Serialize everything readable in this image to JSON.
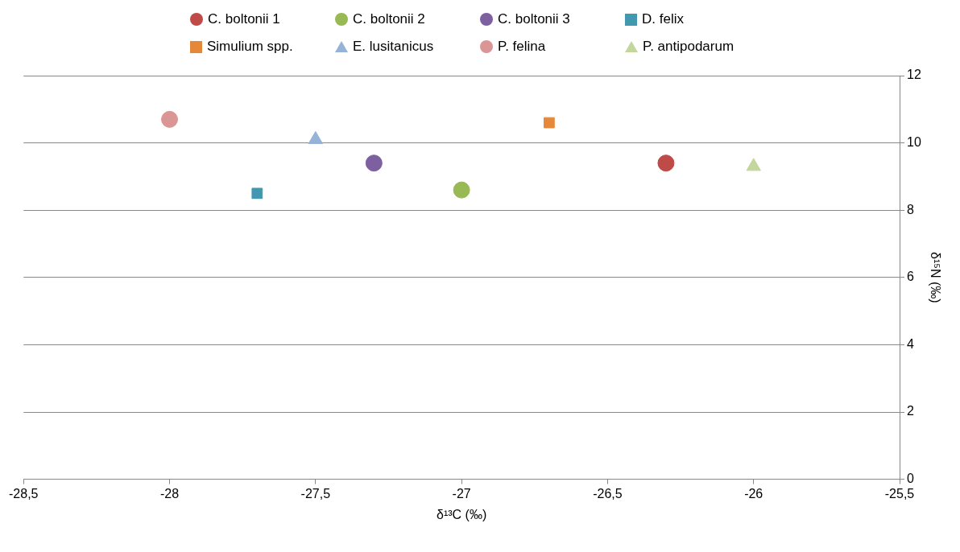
{
  "chart_data": {
    "type": "scatter",
    "xlabel": "δ¹³C (‰)",
    "ylabel": "δ¹⁵N (‰)",
    "xlim": [
      -28.5,
      -25.5
    ],
    "ylim": [
      0,
      12
    ],
    "xticks": [
      {
        "value": -28.5,
        "label": "-28,5"
      },
      -28,
      {
        "value": -27.5,
        "label": "-27,5"
      },
      -27,
      {
        "value": -26.5,
        "label": "-26,5"
      },
      -26,
      {
        "value": -25.5,
        "label": "-25,5"
      }
    ],
    "yticks": [
      0,
      2,
      4,
      6,
      8,
      10,
      12
    ],
    "grid": "y",
    "legend": "top",
    "series": [
      {
        "name": "C. boltonii 1",
        "color": "#be4b48",
        "marker": "circle",
        "x": [
          -26.3
        ],
        "values": [
          9.4
        ]
      },
      {
        "name": "C. boltonii 2",
        "color": "#98b954",
        "marker": "circle",
        "x": [
          -27
        ],
        "values": [
          8.6
        ]
      },
      {
        "name": "C. boltonii 3",
        "color": "#7d60a0",
        "marker": "circle",
        "x": [
          -27.3
        ],
        "values": [
          9.4
        ]
      },
      {
        "name": "D. felix",
        "color": "#4198af",
        "marker": "square",
        "x": [
          -27.7
        ],
        "values": [
          8.5
        ]
      },
      {
        "name": "Simulium spp.",
        "color": "#e6883a",
        "marker": "square",
        "x": [
          -26.7
        ],
        "values": [
          10.6
        ]
      },
      {
        "name": "E. lusitanicus",
        "color": "#95b3d7",
        "marker": "triangle",
        "x": [
          -27.5
        ],
        "values": [
          10.1
        ]
      },
      {
        "name": "P. felina",
        "color": "#d99694",
        "marker": "circle",
        "x": [
          -28
        ],
        "values": [
          10.7
        ]
      },
      {
        "name": "P. antipodarum",
        "color": "#c3d69b",
        "marker": "triangle",
        "x": [
          -26
        ],
        "values": [
          9.3
        ]
      }
    ]
  }
}
